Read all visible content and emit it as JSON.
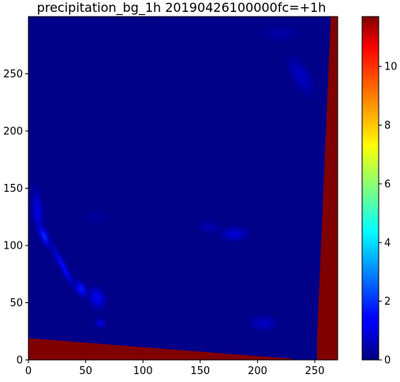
{
  "chart_data": {
    "type": "heatmap",
    "title": "precipitation_bg_1h 20190426100000fc=+1h",
    "xlabel": "",
    "ylabel": "",
    "xlim": [
      0,
      270
    ],
    "ylim": [
      0,
      300
    ],
    "x_ticks": [
      0,
      50,
      100,
      150,
      200,
      250
    ],
    "y_ticks": [
      0,
      50,
      100,
      150,
      200,
      250
    ],
    "colorbar": {
      "colormap": "jet",
      "range": [
        0,
        11.7
      ],
      "ticks": [
        0,
        2,
        4,
        6,
        8,
        10
      ]
    },
    "field": {
      "background_value": 0.1,
      "missing_value": 11.7,
      "missing_regions": [
        {
          "name": "missing-bottom-band",
          "polygon": [
            [
              0,
              0
            ],
            [
              230,
              0
            ],
            [
              230,
              1
            ],
            [
              0,
              19
            ]
          ]
        },
        {
          "name": "missing-right-edge",
          "polygon": [
            [
              252,
              0
            ],
            [
              270,
              0
            ],
            [
              270,
              300
            ],
            [
              264,
              300
            ],
            [
              252,
              18
            ]
          ]
        }
      ],
      "features": [
        {
          "x": 8,
          "y": 130,
          "rx": 6,
          "ry": 24,
          "rot": -5,
          "v": 1.3
        },
        {
          "x": 14,
          "y": 108,
          "rx": 5,
          "ry": 14,
          "rot": -25,
          "v": 2.0
        },
        {
          "x": 30,
          "y": 82,
          "rx": 4,
          "ry": 28,
          "rot": -28,
          "v": 1.6
        },
        {
          "x": 46,
          "y": 62,
          "rx": 6,
          "ry": 10,
          "rot": -30,
          "v": 1.8
        },
        {
          "x": 60,
          "y": 54,
          "rx": 9,
          "ry": 12,
          "rot": -20,
          "v": 1.5
        },
        {
          "x": 63,
          "y": 32,
          "rx": 6,
          "ry": 5,
          "rot": 0,
          "v": 1.2
        },
        {
          "x": 180,
          "y": 110,
          "rx": 15,
          "ry": 8,
          "rot": 0,
          "v": 1.1
        },
        {
          "x": 158,
          "y": 116,
          "rx": 12,
          "ry": 6,
          "rot": 0,
          "v": 0.7
        },
        {
          "x": 205,
          "y": 32,
          "rx": 15,
          "ry": 8,
          "rot": 0,
          "v": 0.9
        },
        {
          "x": 238,
          "y": 248,
          "rx": 10,
          "ry": 22,
          "rot": -30,
          "v": 0.9
        },
        {
          "x": 220,
          "y": 285,
          "rx": 20,
          "ry": 8,
          "rot": 0,
          "v": 0.5
        },
        {
          "x": 60,
          "y": 125,
          "rx": 15,
          "ry": 6,
          "rot": 0,
          "v": 0.4
        }
      ]
    }
  }
}
